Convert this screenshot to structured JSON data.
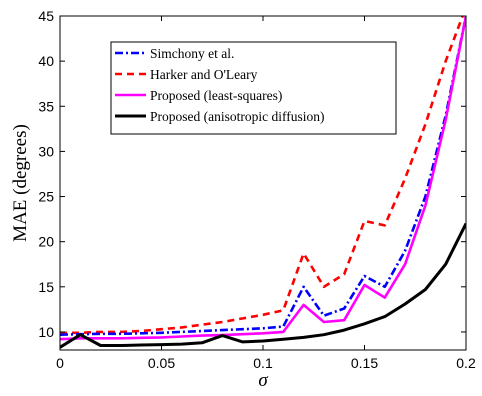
{
  "chart_data": {
    "type": "line",
    "xlabel": "σ",
    "ylabel": "MAE (degrees)",
    "xlim": [
      0,
      0.2
    ],
    "ylim": [
      8,
      45
    ],
    "xticks": [
      0,
      0.05,
      0.1,
      0.15,
      0.2
    ],
    "xtick_labels": [
      "0",
      "0.05",
      "0.1",
      "0.15",
      "0.2"
    ],
    "yticks": [
      10,
      15,
      20,
      25,
      30,
      35,
      40,
      45
    ],
    "ytick_labels": [
      "10",
      "15",
      "20",
      "25",
      "30",
      "35",
      "40",
      "45"
    ],
    "grid": false,
    "legend_position": "top-center",
    "x": [
      0,
      0.01,
      0.02,
      0.03,
      0.04,
      0.05,
      0.06,
      0.07,
      0.08,
      0.09,
      0.1,
      0.11,
      0.12,
      0.13,
      0.14,
      0.15,
      0.16,
      0.17,
      0.18,
      0.19,
      0.2
    ],
    "series": [
      {
        "name": "Simchony et al.",
        "color": "#0000ff",
        "style": "dashdot",
        "values": [
          9.7,
          9.75,
          9.8,
          9.8,
          9.85,
          9.9,
          10.0,
          10.1,
          10.2,
          10.3,
          10.4,
          10.6,
          15.0,
          11.8,
          12.6,
          16.2,
          15.0,
          19.0,
          25.0,
          34.0,
          45.0
        ]
      },
      {
        "name": "Harker and O'Leary",
        "color": "#ff0000",
        "style": "dashed",
        "values": [
          9.9,
          9.9,
          10.0,
          10.0,
          10.1,
          10.3,
          10.5,
          10.8,
          11.1,
          11.5,
          11.9,
          12.4,
          18.7,
          15.0,
          16.4,
          22.3,
          21.8,
          27.0,
          33.0,
          40.0,
          46.0
        ]
      },
      {
        "name": "Proposed (least-squares)",
        "color": "#ff00ff",
        "style": "solid",
        "values": [
          9.2,
          9.3,
          9.3,
          9.3,
          9.35,
          9.4,
          9.5,
          9.6,
          9.65,
          9.75,
          9.85,
          10.0,
          13.0,
          11.1,
          11.3,
          15.2,
          13.8,
          17.5,
          24.0,
          33.5,
          45.0
        ]
      },
      {
        "name": "Proposed (anisotropic diffusion)",
        "color": "#000000",
        "style": "solid",
        "values": [
          8.3,
          9.7,
          8.5,
          8.5,
          8.55,
          8.6,
          8.65,
          8.8,
          9.6,
          8.9,
          9.0,
          9.2,
          9.4,
          9.7,
          10.2,
          10.9,
          11.7,
          13.1,
          14.7,
          17.5,
          22.0
        ]
      }
    ]
  }
}
